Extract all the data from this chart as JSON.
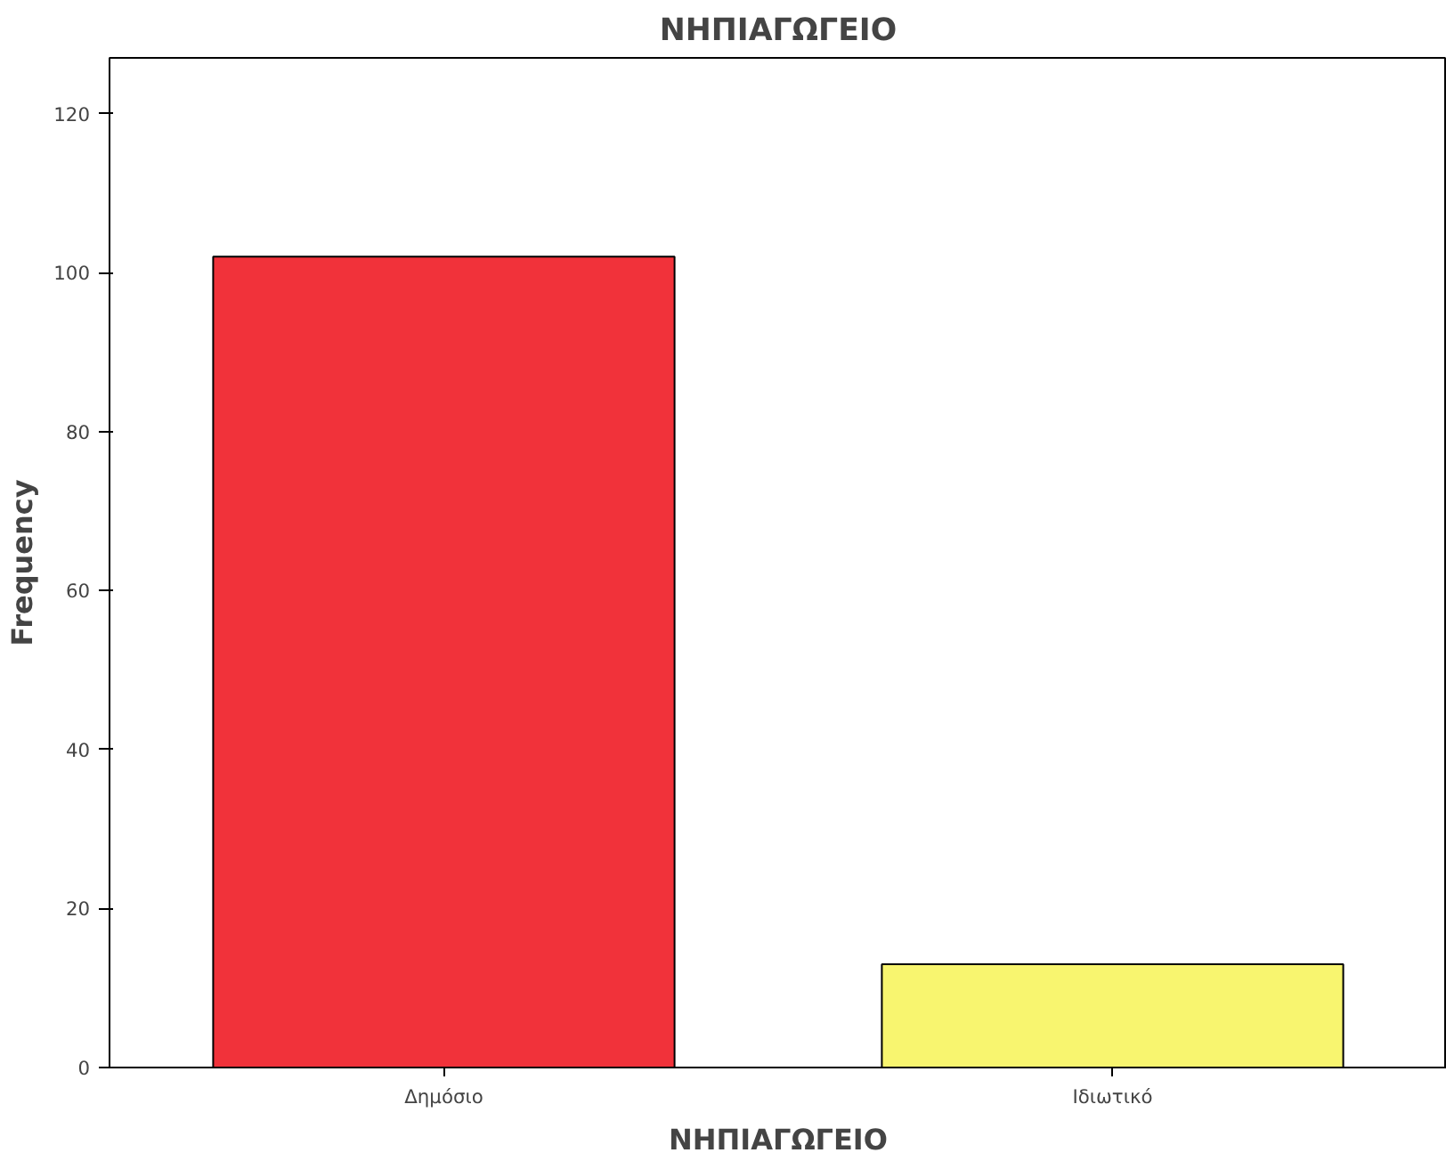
{
  "chart_data": {
    "type": "bar",
    "title": "ΝΗΠΙΑΓΩΓΕΙΟ",
    "xlabel": "ΝΗΠΙΑΓΩΓΕΙΟ",
    "ylabel": "Frequency",
    "categories": [
      "Δημόσιο",
      "Ιδιωτικό"
    ],
    "values": [
      102,
      13
    ],
    "colors": [
      "#f1323a",
      "#f8f56f"
    ],
    "ylim": [
      0,
      127
    ],
    "yticks": [
      0,
      20,
      40,
      60,
      80,
      100,
      120
    ],
    "grid": false
  }
}
